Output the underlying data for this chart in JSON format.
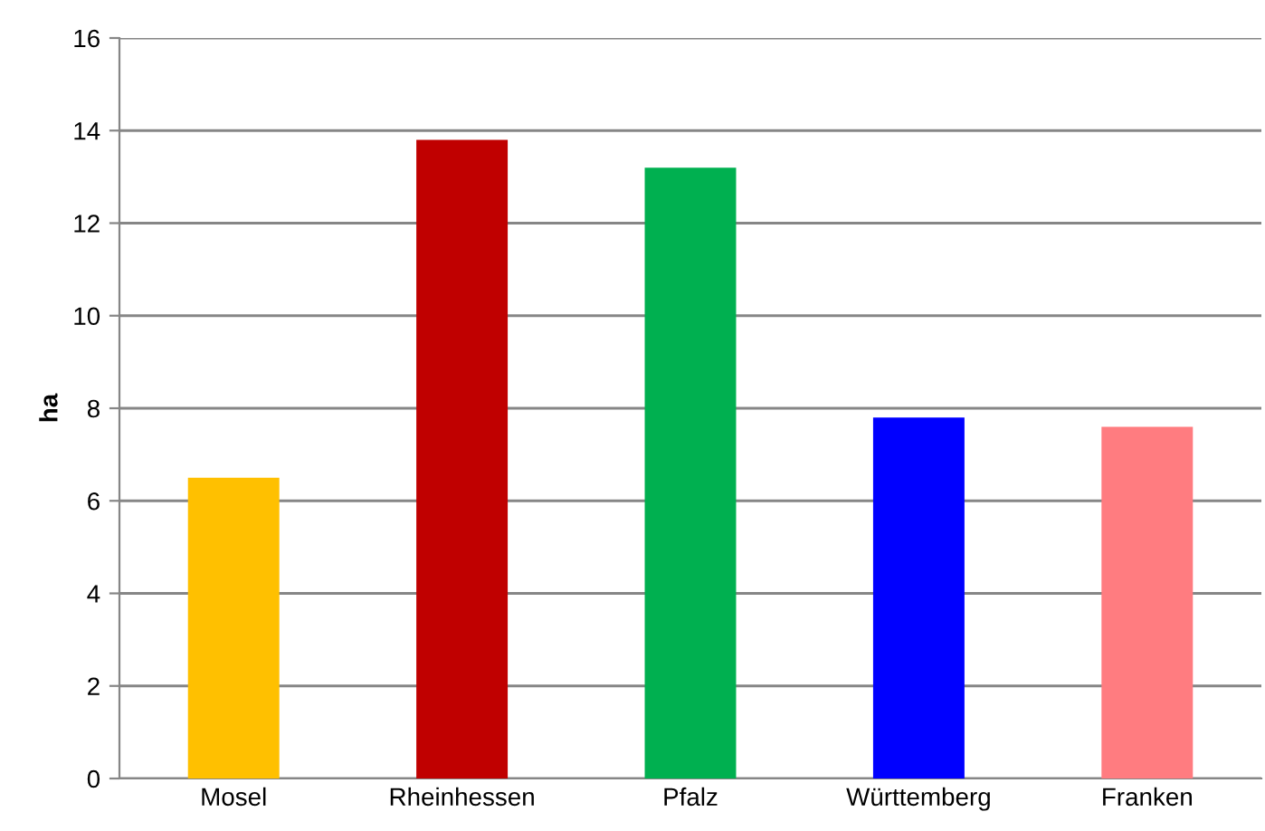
{
  "chart_data": {
    "type": "bar",
    "ylabel": "ha",
    "categories": [
      "Mosel",
      "Rheinhessen",
      "Pfalz",
      "Württemberg",
      "Franken"
    ],
    "values": [
      6.5,
      13.8,
      13.2,
      7.8,
      7.6
    ],
    "colors": [
      "#ffc000",
      "#c00000",
      "#00b050",
      "#0000ff",
      "#ff7c80"
    ],
    "ylim": [
      0,
      16
    ],
    "yticks": [
      0,
      2,
      4,
      6,
      8,
      10,
      12,
      14,
      16
    ],
    "grid": "y",
    "legend": false
  }
}
